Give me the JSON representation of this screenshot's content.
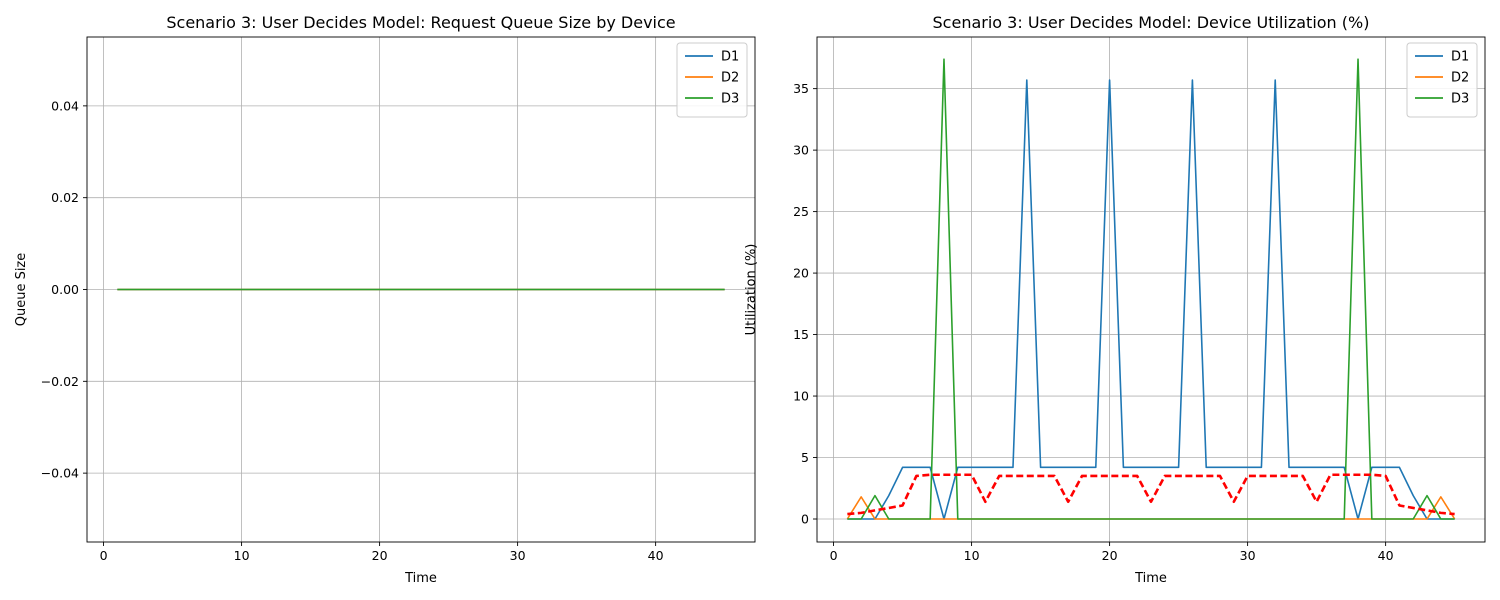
{
  "chart_data": [
    {
      "type": "line",
      "title": "Scenario 3: User Decides Model: Request Queue Size by Device",
      "xlabel": "Time",
      "ylabel": "Queue Size",
      "xlim": [
        -1.2,
        47.2
      ],
      "ylim": [
        -0.055,
        0.055
      ],
      "xticks": [
        0,
        10,
        20,
        30,
        40
      ],
      "yticks": [
        -0.04,
        -0.02,
        0.0,
        0.02,
        0.04
      ],
      "ytick_labels": [
        "−0.04",
        "−0.02",
        "0.00",
        "0.02",
        "0.04"
      ],
      "grid": true,
      "legend": "top-right",
      "x": [
        1,
        45
      ],
      "series": [
        {
          "name": "D1",
          "color": "#1f77b4",
          "values": [
            0,
            0
          ]
        },
        {
          "name": "D2",
          "color": "#ff7f0e",
          "values": [
            0,
            0
          ]
        },
        {
          "name": "D3",
          "color": "#2ca02c",
          "values": [
            0,
            0
          ]
        }
      ]
    },
    {
      "type": "line",
      "title": "Scenario 3: User Decides Model: Device Utilization (%)",
      "xlabel": "Time",
      "ylabel": "Utilization (%)",
      "xlim": [
        -1.2,
        47.2
      ],
      "ylim": [
        -1.87,
        39.2
      ],
      "xticks": [
        0,
        10,
        20,
        30,
        40
      ],
      "yticks": [
        0,
        5,
        10,
        15,
        20,
        25,
        30,
        35
      ],
      "ytick_labels": [
        "0",
        "5",
        "10",
        "15",
        "20",
        "25",
        "30",
        "35"
      ],
      "grid": true,
      "legend": "top-right",
      "x": [
        1,
        2,
        3,
        4,
        5,
        6,
        7,
        8,
        9,
        10,
        11,
        12,
        13,
        14,
        15,
        16,
        17,
        18,
        19,
        20,
        21,
        22,
        23,
        24,
        25,
        26,
        27,
        28,
        29,
        30,
        31,
        32,
        33,
        34,
        35,
        36,
        37,
        38,
        39,
        40,
        41,
        42,
        43,
        44,
        45
      ],
      "series": [
        {
          "name": "D1",
          "color": "#1f77b4",
          "values": [
            0,
            0,
            0,
            1.9,
            4.2,
            4.2,
            4.2,
            0,
            4.2,
            4.2,
            4.2,
            4.2,
            4.2,
            35.7,
            4.2,
            4.2,
            4.2,
            4.2,
            4.2,
            35.7,
            4.2,
            4.2,
            4.2,
            4.2,
            4.2,
            35.7,
            4.2,
            4.2,
            4.2,
            4.2,
            4.2,
            35.7,
            4.2,
            4.2,
            4.2,
            4.2,
            4.2,
            0,
            4.2,
            4.2,
            4.2,
            1.9,
            0,
            0,
            0
          ]
        },
        {
          "name": "D2",
          "color": "#ff7f0e",
          "values": [
            0,
            1.8,
            0,
            0,
            0,
            0,
            0,
            0,
            0,
            0,
            0,
            0,
            0,
            0,
            0,
            0,
            0,
            0,
            0,
            0,
            0,
            0,
            0,
            0,
            0,
            0,
            0,
            0,
            0,
            0,
            0,
            0,
            0,
            0,
            0,
            0,
            0,
            0,
            0,
            0,
            0,
            0,
            0,
            1.8,
            0
          ]
        },
        {
          "name": "D3",
          "color": "#2ca02c",
          "values": [
            0,
            0,
            1.9,
            0,
            0,
            0,
            0,
            37.4,
            0,
            0,
            0,
            0,
            0,
            0,
            0,
            0,
            0,
            0,
            0,
            0,
            0,
            0,
            0,
            0,
            0,
            0,
            0,
            0,
            0,
            0,
            0,
            0,
            0,
            0,
            0,
            0,
            0,
            37.4,
            0,
            0,
            0,
            0,
            1.9,
            0,
            0
          ]
        },
        {
          "color": "#ff0000",
          "dashed": true,
          "values": [
            0.4,
            0.5,
            0.7,
            0.9,
            1.1,
            3.5,
            3.6,
            3.6,
            3.6,
            3.6,
            1.4,
            3.5,
            3.5,
            3.5,
            3.5,
            3.5,
            1.4,
            3.5,
            3.5,
            3.5,
            3.5,
            3.5,
            1.4,
            3.5,
            3.5,
            3.5,
            3.5,
            3.5,
            1.4,
            3.5,
            3.5,
            3.5,
            3.5,
            3.5,
            1.4,
            3.6,
            3.6,
            3.6,
            3.6,
            3.5,
            1.1,
            0.9,
            0.7,
            0.5,
            0.4
          ]
        }
      ]
    }
  ]
}
